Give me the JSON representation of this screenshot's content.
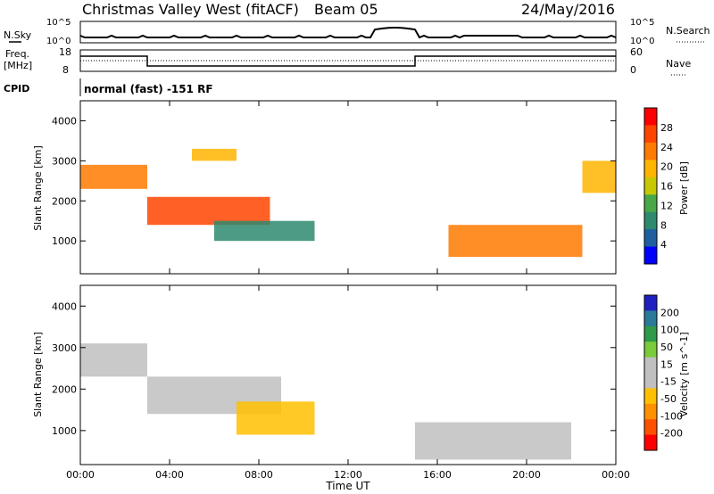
{
  "header": {
    "station": "Christmas Valley West (fitACF)",
    "beam": "Beam 05",
    "date": "24/May/2016"
  },
  "panels": {
    "nsky_label": "N.Sky",
    "nsearch_label": "N.Search",
    "nsky_ticks": [
      "10^5",
      "10^0"
    ],
    "nsearch_ticks": [
      "10^5",
      "10^0"
    ],
    "freq_label_1": "Freq.",
    "freq_label_2": "[MHz]",
    "freq_ticks": [
      "18",
      "8"
    ],
    "nave_label": "Nave",
    "nave_ticks": [
      "60",
      "0"
    ],
    "cpid_label": "CPID",
    "cpid_text": "normal (fast) -151 RF"
  },
  "colorbars": {
    "power": {
      "label": "Power [dB]",
      "ticks": [
        "28",
        "24",
        "20",
        "16",
        "12",
        "8",
        "4"
      ],
      "colors": [
        "#ff0000",
        "#ff4400",
        "#ff7a00",
        "#ffb400",
        "#c8c800",
        "#48a848",
        "#2e8a6e",
        "#1e5fa0",
        "#0000ff"
      ]
    },
    "velocity": {
      "label": "Velocity [m s^-1]",
      "ticks": [
        "200",
        "100",
        "50",
        "15",
        "-15",
        "-50",
        "-100",
        "-200"
      ],
      "colors": [
        "#2020c0",
        "#2a7a9a",
        "#2e9a4a",
        "#7acc3a",
        "#c0c0c0",
        "#c0c0c0",
        "#ffc000",
        "#ff9000",
        "#ff5000",
        "#ff0000"
      ]
    }
  },
  "axes": {
    "ylabel": "Slant Range [km]",
    "xlabel": "Time UT",
    "yticks": [
      "4000",
      "3000",
      "2000",
      "1000"
    ],
    "xticks": [
      "00:00",
      "04:00",
      "08:00",
      "12:00",
      "16:00",
      "20:00",
      "00:00"
    ]
  },
  "chart_data": [
    {
      "type": "heatmap",
      "title": "Power",
      "xlabel": "Time UT",
      "ylabel": "Slant Range [km]",
      "xlim": [
        "00:00",
        "24:00"
      ],
      "ylim": [
        180,
        4500
      ],
      "colorbar_label": "Power [dB]",
      "color_range": [
        0,
        32
      ],
      "regions": [
        {
          "start": "00:00",
          "end": "03:00",
          "range_low": 2300,
          "range_high": 2900,
          "power": 26
        },
        {
          "start": "03:00",
          "end": "08:30",
          "range_low": 1400,
          "range_high": 2100,
          "power": 28
        },
        {
          "start": "05:00",
          "end": "07:00",
          "range_low": 3000,
          "range_high": 3300,
          "power": 22
        },
        {
          "start": "06:00",
          "end": "10:30",
          "range_low": 1000,
          "range_high": 1500,
          "power": 10
        },
        {
          "start": "16:30",
          "end": "22:30",
          "range_low": 600,
          "range_high": 1400,
          "power": 24
        },
        {
          "start": "22:30",
          "end": "24:00",
          "range_low": 2200,
          "range_high": 3000,
          "power": 22
        }
      ]
    },
    {
      "type": "heatmap",
      "title": "Velocity",
      "xlabel": "Time UT",
      "ylabel": "Slant Range [km]",
      "xlim": [
        "00:00",
        "24:00"
      ],
      "ylim": [
        180,
        4500
      ],
      "colorbar_label": "Velocity [m s^-1]",
      "color_range": [
        -200,
        200
      ],
      "regions": [
        {
          "start": "00:00",
          "end": "03:00",
          "range_low": 2300,
          "range_high": 3100,
          "velocity": 0
        },
        {
          "start": "03:00",
          "end": "09:00",
          "range_low": 1400,
          "range_high": 2300,
          "velocity": 0
        },
        {
          "start": "07:00",
          "end": "10:30",
          "range_low": 900,
          "range_high": 1700,
          "velocity": -80
        },
        {
          "start": "15:00",
          "end": "22:00",
          "range_low": 300,
          "range_high": 1200,
          "velocity": 0
        }
      ]
    }
  ]
}
